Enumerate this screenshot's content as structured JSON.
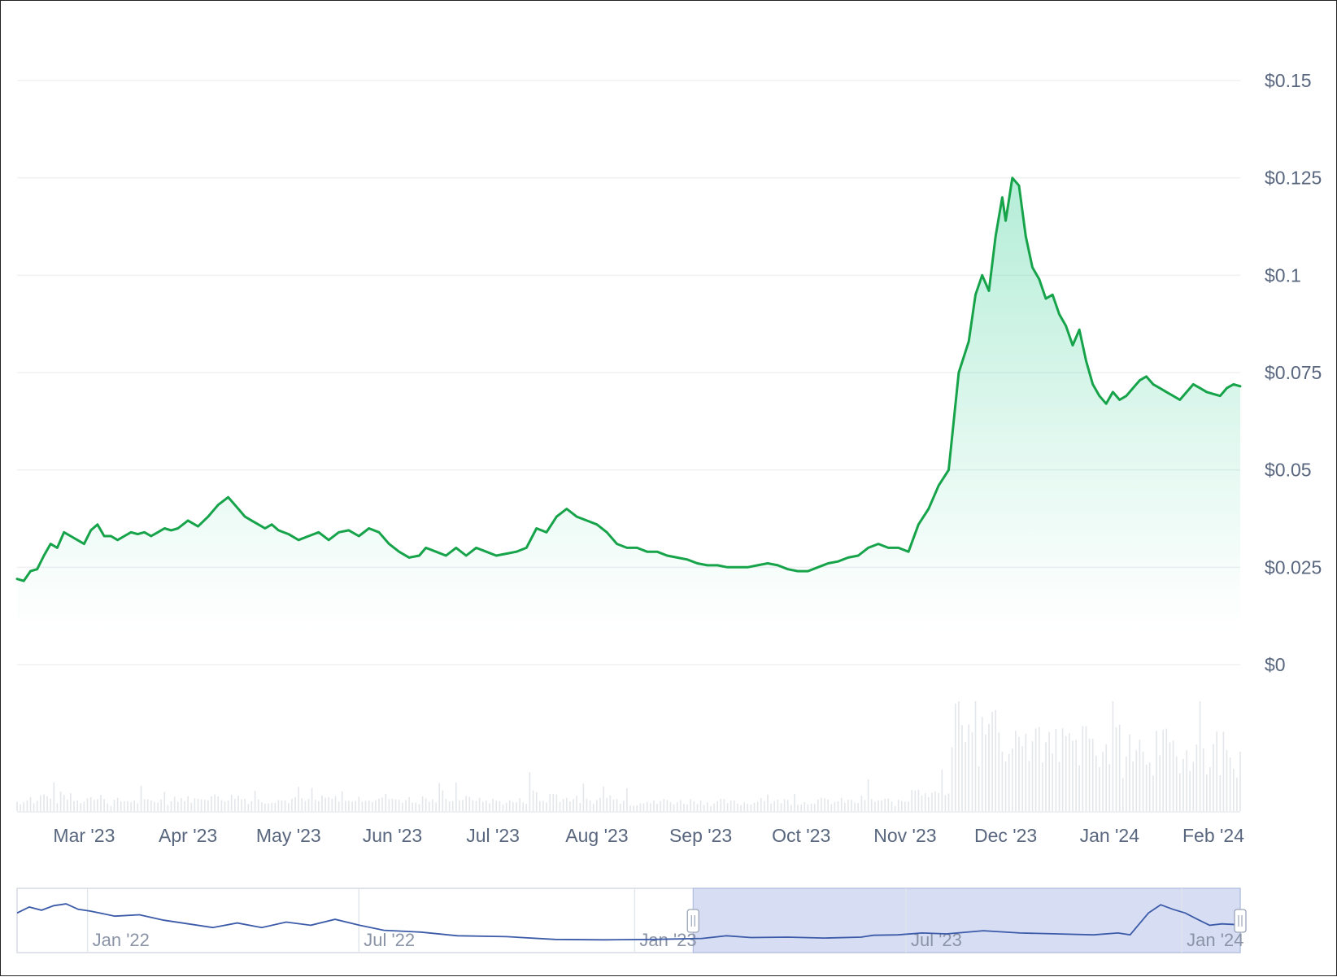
{
  "chart_data": [
    {
      "type": "area",
      "y_ticks": [
        "$0",
        "$0.025",
        "$0.05",
        "$0.075",
        "$0.1",
        "$0.125",
        "$0.15"
      ],
      "y_tick_values": [
        0,
        0.025,
        0.05,
        0.075,
        0.1,
        0.125,
        0.15
      ],
      "ylim": [
        0,
        0.15
      ],
      "x_ticks": [
        "Mar '23",
        "Apr '23",
        "May '23",
        "Jun '23",
        "Jul '23",
        "Aug '23",
        "Sep '23",
        "Oct '23",
        "Nov '23",
        "Dec '23",
        "Jan '24",
        "Feb '24"
      ],
      "x_tick_dates": [
        "2023-03-01",
        "2023-04-01",
        "2023-05-01",
        "2023-06-01",
        "2023-07-01",
        "2023-08-01",
        "2023-09-01",
        "2023-10-01",
        "2023-11-01",
        "2023-12-01",
        "2024-01-01",
        "2024-02-01"
      ],
      "xlim": [
        "2023-02-09",
        "2024-02-09"
      ],
      "grid": true,
      "line_color": "#16a34a",
      "fill_color": "#16c784",
      "price_series": {
        "x": [
          "2023-02-09",
          "2023-02-11",
          "2023-02-13",
          "2023-02-15",
          "2023-02-17",
          "2023-02-19",
          "2023-02-21",
          "2023-02-23",
          "2023-02-25",
          "2023-02-27",
          "2023-03-01",
          "2023-03-03",
          "2023-03-05",
          "2023-03-07",
          "2023-03-09",
          "2023-03-11",
          "2023-03-13",
          "2023-03-15",
          "2023-03-17",
          "2023-03-19",
          "2023-03-21",
          "2023-03-23",
          "2023-03-25",
          "2023-03-27",
          "2023-03-29",
          "2023-04-01",
          "2023-04-04",
          "2023-04-07",
          "2023-04-10",
          "2023-04-13",
          "2023-04-16",
          "2023-04-18",
          "2023-04-20",
          "2023-04-22",
          "2023-04-24",
          "2023-04-26",
          "2023-04-28",
          "2023-05-01",
          "2023-05-04",
          "2023-05-07",
          "2023-05-10",
          "2023-05-13",
          "2023-05-16",
          "2023-05-19",
          "2023-05-22",
          "2023-05-25",
          "2023-05-28",
          "2023-05-31",
          "2023-06-03",
          "2023-06-06",
          "2023-06-09",
          "2023-06-11",
          "2023-06-14",
          "2023-06-17",
          "2023-06-20",
          "2023-06-23",
          "2023-06-26",
          "2023-06-29",
          "2023-07-02",
          "2023-07-05",
          "2023-07-08",
          "2023-07-11",
          "2023-07-14",
          "2023-07-17",
          "2023-07-20",
          "2023-07-23",
          "2023-07-26",
          "2023-07-29",
          "2023-08-01",
          "2023-08-04",
          "2023-08-07",
          "2023-08-10",
          "2023-08-13",
          "2023-08-16",
          "2023-08-19",
          "2023-08-22",
          "2023-08-25",
          "2023-08-28",
          "2023-08-31",
          "2023-09-03",
          "2023-09-06",
          "2023-09-09",
          "2023-09-12",
          "2023-09-15",
          "2023-09-18",
          "2023-09-21",
          "2023-09-24",
          "2023-09-27",
          "2023-09-30",
          "2023-10-03",
          "2023-10-06",
          "2023-10-09",
          "2023-10-12",
          "2023-10-15",
          "2023-10-18",
          "2023-10-21",
          "2023-10-24",
          "2023-10-27",
          "2023-10-30",
          "2023-11-02",
          "2023-11-05",
          "2023-11-08",
          "2023-11-11",
          "2023-11-14",
          "2023-11-17",
          "2023-11-20",
          "2023-11-22",
          "2023-11-24",
          "2023-11-26",
          "2023-11-28",
          "2023-11-30",
          "2023-12-01",
          "2023-12-03",
          "2023-12-05",
          "2023-12-07",
          "2023-12-09",
          "2023-12-11",
          "2023-12-13",
          "2023-12-15",
          "2023-12-17",
          "2023-12-19",
          "2023-12-21",
          "2023-12-23",
          "2023-12-25",
          "2023-12-27",
          "2023-12-29",
          "2023-12-31",
          "2024-01-02",
          "2024-01-04",
          "2024-01-06",
          "2024-01-08",
          "2024-01-10",
          "2024-01-12",
          "2024-01-14",
          "2024-01-16",
          "2024-01-18",
          "2024-01-20",
          "2024-01-22",
          "2024-01-24",
          "2024-01-26",
          "2024-01-28",
          "2024-01-30",
          "2024-02-01",
          "2024-02-03",
          "2024-02-05",
          "2024-02-07",
          "2024-02-09"
        ],
        "y": [
          0.022,
          0.0215,
          0.024,
          0.0245,
          0.028,
          0.031,
          0.03,
          0.034,
          0.033,
          0.032,
          0.031,
          0.0345,
          0.036,
          0.033,
          0.033,
          0.032,
          0.033,
          0.034,
          0.0335,
          0.034,
          0.033,
          0.034,
          0.035,
          0.0345,
          0.035,
          0.037,
          0.0355,
          0.038,
          0.041,
          0.043,
          0.04,
          0.038,
          0.037,
          0.036,
          0.035,
          0.036,
          0.0345,
          0.0335,
          0.032,
          0.033,
          0.034,
          0.032,
          0.034,
          0.0345,
          0.033,
          0.035,
          0.034,
          0.031,
          0.029,
          0.0275,
          0.028,
          0.03,
          0.029,
          0.028,
          0.03,
          0.028,
          0.03,
          0.029,
          0.028,
          0.0285,
          0.029,
          0.03,
          0.035,
          0.034,
          0.038,
          0.04,
          0.038,
          0.037,
          0.036,
          0.034,
          0.031,
          0.03,
          0.03,
          0.029,
          0.029,
          0.028,
          0.0275,
          0.027,
          0.026,
          0.0255,
          0.0255,
          0.025,
          0.025,
          0.025,
          0.0255,
          0.026,
          0.0255,
          0.0245,
          0.024,
          0.024,
          0.025,
          0.026,
          0.0265,
          0.0275,
          0.028,
          0.03,
          0.031,
          0.03,
          0.03,
          0.029,
          0.036,
          0.04,
          0.046,
          0.05,
          0.075,
          0.083,
          0.095,
          0.1,
          0.096,
          0.11,
          0.12,
          0.114,
          0.125,
          0.123,
          0.11,
          0.102,
          0.099,
          0.094,
          0.095,
          0.09,
          0.087,
          0.082,
          0.086,
          0.078,
          0.072,
          0.069,
          0.067,
          0.07,
          0.068,
          0.069,
          0.071,
          0.073,
          0.074,
          0.072,
          0.071,
          0.07,
          0.069,
          0.068,
          0.07,
          0.072,
          0.071,
          0.07,
          0.0695,
          0.069,
          0.071,
          0.072,
          0.0715
        ]
      }
    },
    {
      "type": "bar",
      "series_role": "volume"
    },
    {
      "type": "line",
      "role": "range-navigator",
      "x_ticks": [
        "Jan '22",
        "Jul '22",
        "Jan '23",
        "Jul '23",
        "Jan '24"
      ],
      "x_tick_dates": [
        "2022-01-01",
        "2022-07-01",
        "2023-01-01",
        "2023-07-01",
        "2024-01-01"
      ],
      "xlim": [
        "2021-11-15",
        "2024-02-09"
      ],
      "selected_range": [
        "2023-02-09",
        "2024-02-09"
      ],
      "line_color": "#3b5aa8",
      "selection_color": "#c9d3f0"
    }
  ]
}
